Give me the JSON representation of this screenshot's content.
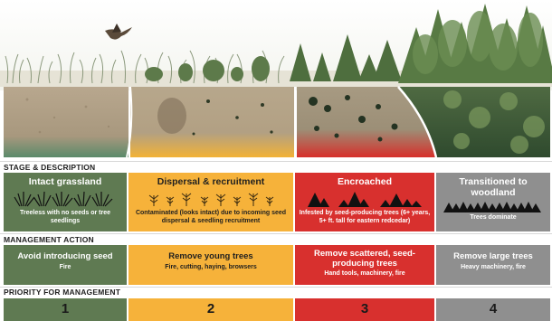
{
  "sections": {
    "stage": "STAGE & DESCRIPTION",
    "action": "MANAGEMENT ACTION",
    "priority": "PRIORITY FOR MANAGEMENT"
  },
  "stages": [
    {
      "title": "Intact grassland",
      "description": "Treeless with no seeds or tree seedlings",
      "action_title": "Avoid introducing seed",
      "action_detail": "Fire",
      "priority": "1",
      "color": "#5f7a52"
    },
    {
      "title": "Dispersal & recruitment",
      "description": "Contaminated (looks intact) due to incoming seed dispersal & seedling recruitment",
      "action_title": "Remove young trees",
      "action_detail": "Fire, cutting, haying, browsers",
      "priority": "2",
      "color": "#f6b23a"
    },
    {
      "title": "Encroached",
      "description": "Infested by seed-producing trees (6+ years, 5+ ft. tall for eastern redcedar)",
      "action_title": "Remove scattered, seed-producing trees",
      "action_detail": "Hand tools, machinery, fire",
      "priority": "3",
      "color": "#d8302e"
    },
    {
      "title": "Transitioned to woodland",
      "description": "Trees dominate",
      "action_title": "Remove large trees",
      "action_detail": "Heavy machinery, fire",
      "priority": "4",
      "color": "#8f8f8f"
    }
  ],
  "icons": {
    "stage1": "grass-icon",
    "stage2": "seedling-icon",
    "stage3": "tree-cluster-icon",
    "stage4": "forest-icon",
    "scene_bird": "bird-icon"
  }
}
